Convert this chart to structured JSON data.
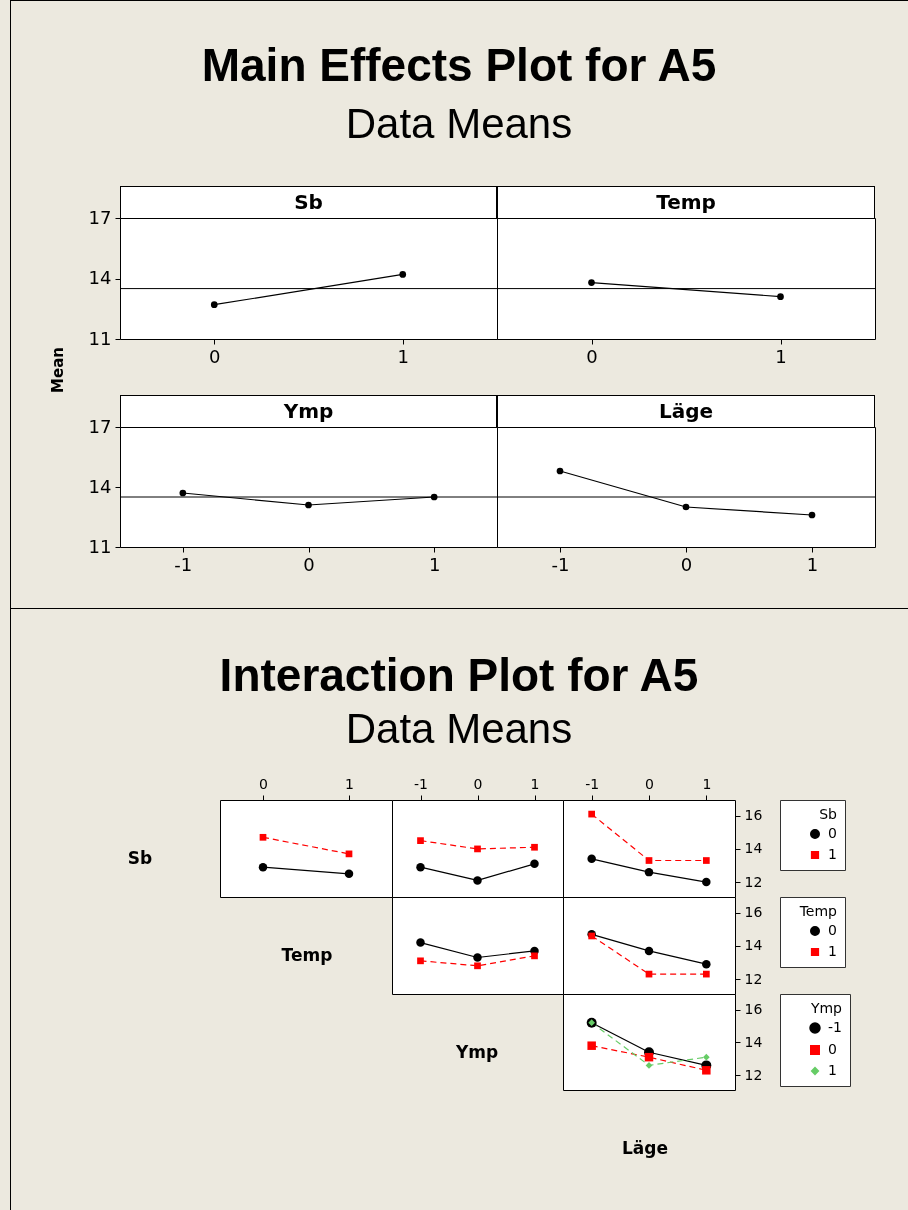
{
  "chart_data": [
    {
      "type": "line",
      "title": "Main Effects Plot for A5",
      "subtitle": "Data Means",
      "xlabel": "Sb",
      "ylabel": "Mean",
      "x": [
        0,
        1
      ],
      "series": [
        {
          "color": "#000000",
          "values": [
            12.7,
            14.2
          ]
        }
      ],
      "xlim": [
        -0.5,
        1.5
      ],
      "xticks": [
        0,
        1
      ],
      "ylim": [
        11,
        17
      ],
      "yticks": [
        11,
        14,
        17
      ],
      "ref_lines": [
        {
          "axis": "y",
          "value": 13.5,
          "color": "#000000"
        }
      ],
      "marker": "circle",
      "line_style": "solid"
    },
    {
      "type": "line",
      "xlabel": "Temp",
      "x": [
        0,
        1
      ],
      "series": [
        {
          "color": "#000000",
          "values": [
            13.8,
            13.1
          ]
        }
      ],
      "xlim": [
        -0.5,
        1.5
      ],
      "xticks": [
        0,
        1
      ],
      "ylim": [
        11,
        17
      ],
      "ref_lines": [
        {
          "axis": "y",
          "value": 13.5,
          "color": "#000000"
        }
      ],
      "marker": "circle",
      "line_style": "solid",
      "tick_labels": "x"
    },
    {
      "type": "line",
      "xlabel": "Ymp",
      "x": [
        -1,
        0,
        1
      ],
      "series": [
        {
          "color": "#000000",
          "values": [
            13.7,
            13.1,
            13.5
          ]
        }
      ],
      "xlim": [
        -1.5,
        1.5
      ],
      "xticks": [
        -1,
        0,
        1
      ],
      "ylim": [
        11,
        17
      ],
      "yticks": [
        11,
        14,
        17
      ],
      "ref_lines": [
        {
          "axis": "y",
          "value": 13.5,
          "color": "#000000"
        }
      ],
      "marker": "circle",
      "line_style": "solid"
    },
    {
      "type": "line",
      "xlabel": "Läge",
      "x": [
        -1,
        0,
        1
      ],
      "series": [
        {
          "color": "#000000",
          "values": [
            14.8,
            13.0,
            12.6
          ]
        }
      ],
      "xlim": [
        -1.5,
        1.5
      ],
      "xticks": [
        -1,
        0,
        1
      ],
      "ylim": [
        11,
        17
      ],
      "ref_lines": [
        {
          "axis": "y",
          "value": 13.5,
          "color": "#000000"
        }
      ],
      "marker": "circle",
      "line_style": "solid",
      "tick_labels": "x"
    },
    {
      "type": "line",
      "title": "Interaction Plot for A5",
      "subtitle": "Data Means",
      "ylabel": "Sb",
      "x": [
        0,
        1
      ],
      "series": [
        {
          "color": "#000000",
          "marker": "circle",
          "line_style": "solid",
          "values": [
            12.9,
            12.5
          ]
        },
        {
          "color": "#ff0000",
          "marker": "square",
          "line_style": "dashed",
          "values": [
            14.7,
            13.7
          ]
        }
      ],
      "xlim": [
        -0.5,
        1.5
      ],
      "xticks": [
        0,
        1
      ],
      "ylim": [
        11.1,
        16.95
      ],
      "tick_labels": "x"
    },
    {
      "type": "line",
      "x": [
        -1,
        0,
        1
      ],
      "series": [
        {
          "color": "#000000",
          "marker": "circle",
          "line_style": "solid",
          "values": [
            12.9,
            12.1,
            13.1
          ]
        },
        {
          "color": "#ff0000",
          "marker": "square",
          "line_style": "dashed",
          "values": [
            14.5,
            14.0,
            14.1
          ]
        }
      ],
      "xlim": [
        -1.5,
        1.5
      ],
      "xticks": [
        -1,
        0,
        1
      ],
      "ylim": [
        11.1,
        16.95
      ],
      "tick_labels": "x"
    },
    {
      "type": "line",
      "legend_title": "Sb",
      "legend": "right",
      "x": [
        -1,
        0,
        1
      ],
      "series": [
        {
          "name": "0",
          "color": "#000000",
          "marker": "circle",
          "line_style": "solid",
          "values": [
            13.4,
            12.6,
            12.0
          ]
        },
        {
          "name": "1",
          "color": "#ff0000",
          "marker": "square",
          "line_style": "dashed",
          "values": [
            16.1,
            13.3,
            13.3
          ]
        }
      ],
      "xlim": [
        -1.5,
        1.5
      ],
      "xticks": [
        -1,
        0,
        1
      ],
      "ylim": [
        11.1,
        16.95
      ],
      "yticks": [
        12,
        14,
        16
      ]
    },
    {
      "type": "line",
      "ylabel": "Temp",
      "x": [
        -1,
        0,
        1
      ],
      "series": [
        {
          "color": "#000000",
          "marker": "circle",
          "line_style": "solid",
          "values": [
            14.2,
            13.3,
            13.7
          ]
        },
        {
          "color": "#ff0000",
          "marker": "square",
          "line_style": "dashed",
          "values": [
            13.1,
            12.8,
            13.4
          ]
        }
      ],
      "xlim": [
        -1.5,
        1.5
      ],
      "ylim": [
        11.1,
        16.95
      ],
      "tick_labels": false
    },
    {
      "type": "line",
      "legend_title": "Temp",
      "legend": "right",
      "x": [
        -1,
        0,
        1
      ],
      "series": [
        {
          "name": "0",
          "color": "#000000",
          "marker": "circle",
          "line_style": "solid",
          "values": [
            14.7,
            13.7,
            12.9
          ]
        },
        {
          "name": "1",
          "color": "#ff0000",
          "marker": "square",
          "line_style": "dashed",
          "values": [
            14.6,
            12.3,
            12.3
          ]
        }
      ],
      "xlim": [
        -1.5,
        1.5
      ],
      "ylim": [
        11.1,
        16.95
      ],
      "yticks": [
        12,
        14,
        16
      ],
      "tick_labels": "y"
    },
    {
      "type": "line",
      "ylabel": "Ymp",
      "xlabel": "Läge",
      "legend_title": "Ymp",
      "legend": "right",
      "x": [
        -1,
        0,
        1
      ],
      "series": [
        {
          "name": "-1",
          "color": "#000000",
          "marker": "circle",
          "line_style": "solid",
          "values": [
            15.2,
            13.4,
            12.6
          ]
        },
        {
          "name": "0",
          "color": "#ff0000",
          "marker": "square",
          "line_style": "dashed",
          "values": [
            13.8,
            13.1,
            12.3
          ]
        },
        {
          "name": "1",
          "color": "#66cc66",
          "marker": "diamond",
          "line_style": "dashed",
          "values": [
            15.2,
            12.6,
            13.1
          ]
        }
      ],
      "xlim": [
        -1.5,
        1.5
      ],
      "ylim": [
        11.1,
        16.95
      ],
      "yticks": [
        12,
        14,
        16
      ],
      "tick_labels": "y"
    }
  ]
}
